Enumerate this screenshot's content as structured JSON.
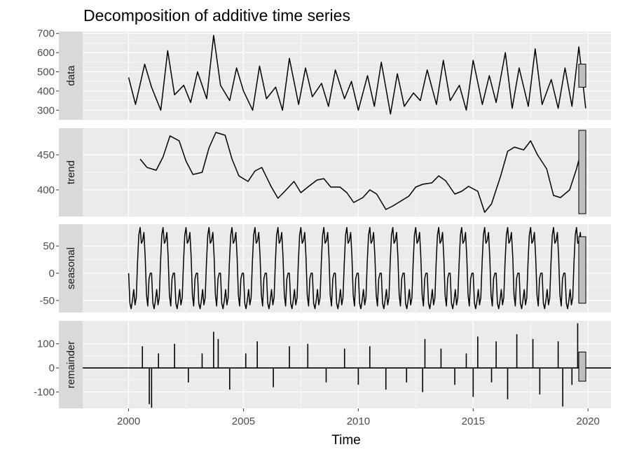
{
  "chart_data": {
    "type": "line",
    "title": "Decomposition of additive time series",
    "xlabel": "Time",
    "x_ticks": [
      "2000",
      "2005",
      "2010",
      "2015",
      "2020"
    ],
    "xlim": [
      1998.0,
      2021.0
    ],
    "panels": [
      {
        "name": "data",
        "ylim": [
          250,
          710
        ],
        "y_ticks": [
          "300",
          "400",
          "500",
          "600",
          "700"
        ],
        "y_tick_values": [
          300,
          400,
          500,
          600,
          700
        ],
        "range_bar": [
          420,
          540
        ],
        "x": [
          2000.0,
          2000.3,
          2000.7,
          2001.0,
          2001.4,
          2001.7,
          2002.0,
          2002.4,
          2002.7,
          2003.0,
          2003.4,
          2003.7,
          2004.0,
          2004.4,
          2004.7,
          2005.0,
          2005.4,
          2005.7,
          2006.0,
          2006.4,
          2006.7,
          2007.0,
          2007.4,
          2007.7,
          2008.0,
          2008.4,
          2008.7,
          2009.0,
          2009.4,
          2009.7,
          2010.0,
          2010.4,
          2010.7,
          2011.0,
          2011.4,
          2011.7,
          2012.0,
          2012.4,
          2012.7,
          2013.0,
          2013.4,
          2013.7,
          2014.0,
          2014.4,
          2014.7,
          2015.0,
          2015.4,
          2015.7,
          2016.0,
          2016.4,
          2016.7,
          2017.0,
          2017.4,
          2017.7,
          2018.0,
          2018.4,
          2018.7,
          2019.0,
          2019.3,
          2019.6,
          2019.9
        ],
        "values": [
          470,
          330,
          540,
          420,
          300,
          610,
          380,
          430,
          340,
          500,
          360,
          690,
          430,
          350,
          520,
          400,
          300,
          530,
          360,
          420,
          300,
          570,
          330,
          520,
          370,
          440,
          320,
          510,
          360,
          450,
          300,
          480,
          320,
          550,
          280,
          490,
          320,
          390,
          350,
          510,
          330,
          560,
          350,
          430,
          300,
          560,
          330,
          480,
          340,
          600,
          310,
          520,
          320,
          620,
          330,
          460,
          310,
          520,
          320,
          630,
          310
        ]
      },
      {
        "name": "trend",
        "ylim": [
          362,
          488
        ],
        "y_ticks": [
          "400",
          "450"
        ],
        "y_tick_values": [
          400,
          450
        ],
        "range_bar": [
          366,
          485
        ],
        "x": [
          2000.5,
          2000.8,
          2001.2,
          2001.5,
          2001.8,
          2002.2,
          2002.5,
          2002.8,
          2003.2,
          2003.5,
          2003.8,
          2004.2,
          2004.5,
          2004.8,
          2005.2,
          2005.5,
          2005.8,
          2006.2,
          2006.5,
          2006.8,
          2007.2,
          2007.5,
          2007.8,
          2008.2,
          2008.5,
          2008.8,
          2009.2,
          2009.5,
          2009.8,
          2010.2,
          2010.5,
          2010.8,
          2011.2,
          2011.5,
          2011.8,
          2012.2,
          2012.5,
          2012.8,
          2013.2,
          2013.5,
          2013.8,
          2014.2,
          2014.5,
          2014.8,
          2015.2,
          2015.5,
          2015.8,
          2016.2,
          2016.5,
          2016.8,
          2017.2,
          2017.5,
          2017.8,
          2018.2,
          2018.5,
          2018.8,
          2019.2,
          2019.5,
          2019.7
        ],
        "values": [
          444,
          432,
          428,
          447,
          477,
          470,
          441,
          422,
          425,
          460,
          482,
          478,
          444,
          420,
          412,
          427,
          432,
          405,
          388,
          398,
          412,
          396,
          404,
          414,
          416,
          404,
          404,
          396,
          382,
          389,
          400,
          394,
          372,
          377,
          383,
          391,
          404,
          408,
          410,
          420,
          413,
          394,
          398,
          405,
          398,
          368,
          380,
          420,
          455,
          461,
          457,
          470,
          450,
          430,
          392,
          389,
          400,
          430,
          455
        ]
      },
      {
        "name": "seasonal",
        "ylim": [
          -72,
          90
        ],
        "y_ticks": [
          "-50",
          "0",
          "50"
        ],
        "y_tick_values": [
          -50,
          0,
          50
        ],
        "range_bar": [
          -55,
          67
        ],
        "cycle_start": 2000.0,
        "cycle_end": 2019.8,
        "cycle_shape": [
          0,
          -55,
          -65,
          -50,
          -30,
          -58,
          -45,
          20,
          70,
          84,
          55,
          60,
          75,
          30,
          -40,
          -60,
          -10,
          0
        ],
        "end_value": -20
      },
      {
        "name": "remainder",
        "ylim": [
          -168,
          195
        ],
        "y_ticks": [
          "-100",
          "0",
          "100"
        ],
        "y_tick_values": [
          -100,
          0,
          100
        ],
        "range_bar": [
          -55,
          66
        ],
        "baseline": 0,
        "x_start": 2000.5,
        "x_end": 2019.7,
        "spikes": [
          [
            2000.6,
            90
          ],
          [
            2000.9,
            -150
          ],
          [
            2001.0,
            -165
          ],
          [
            2001.3,
            60
          ],
          [
            2002.0,
            100
          ],
          [
            2002.6,
            -60
          ],
          [
            2003.2,
            60
          ],
          [
            2003.7,
            150
          ],
          [
            2003.9,
            120
          ],
          [
            2004.4,
            -90
          ],
          [
            2005.1,
            60
          ],
          [
            2005.6,
            110
          ],
          [
            2006.3,
            -80
          ],
          [
            2007.0,
            90
          ],
          [
            2007.8,
            100
          ],
          [
            2008.6,
            -60
          ],
          [
            2009.4,
            80
          ],
          [
            2010.0,
            -70
          ],
          [
            2010.5,
            90
          ],
          [
            2011.2,
            -90
          ],
          [
            2012.1,
            -60
          ],
          [
            2012.8,
            -100
          ],
          [
            2012.9,
            120
          ],
          [
            2013.6,
            80
          ],
          [
            2014.2,
            -70
          ],
          [
            2014.7,
            60
          ],
          [
            2015.0,
            -120
          ],
          [
            2015.2,
            130
          ],
          [
            2015.8,
            -60
          ],
          [
            2016.0,
            110
          ],
          [
            2016.5,
            -130
          ],
          [
            2016.9,
            140
          ],
          [
            2017.6,
            120
          ],
          [
            2017.9,
            -110
          ],
          [
            2018.7,
            110
          ],
          [
            2018.9,
            -160
          ],
          [
            2019.3,
            -70
          ],
          [
            2019.55,
            185
          ]
        ]
      }
    ]
  }
}
